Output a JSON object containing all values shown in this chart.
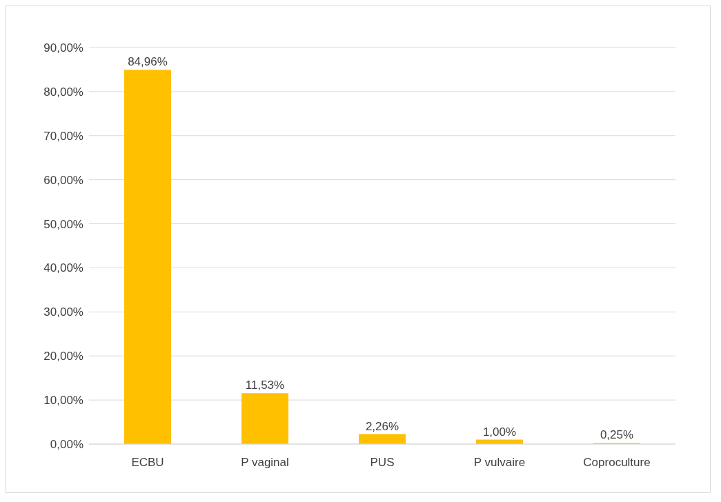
{
  "chart_data": {
    "type": "bar",
    "categories": [
      "ECBU",
      "P vaginal",
      "PUS",
      "P vulvaire",
      "Coproculture"
    ],
    "values": [
      84.96,
      11.53,
      2.26,
      1.0,
      0.25
    ],
    "value_labels": [
      "84,96%",
      "11,53%",
      "2,26%",
      "1,00%",
      "0,25%"
    ],
    "color": "#ffc000",
    "ylim": [
      0,
      90
    ],
    "yticks": [
      {
        "value": 0,
        "label": "0,00%"
      },
      {
        "value": 10,
        "label": "10,00%"
      },
      {
        "value": 20,
        "label": "20,00%"
      },
      {
        "value": 30,
        "label": "30,00%"
      },
      {
        "value": 40,
        "label": "40,00%"
      },
      {
        "value": 50,
        "label": "50,00%"
      },
      {
        "value": 60,
        "label": "60,00%"
      },
      {
        "value": 70,
        "label": "70,00%"
      },
      {
        "value": 80,
        "label": "80,00%"
      },
      {
        "value": 90,
        "label": "90,00%"
      }
    ],
    "grid": "y",
    "legend": false
  }
}
